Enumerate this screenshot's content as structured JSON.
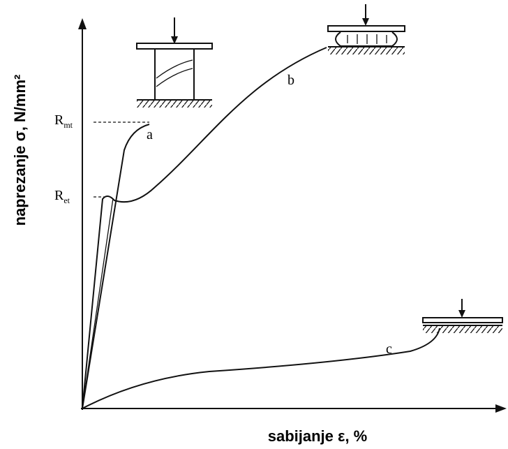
{
  "y_axis_label": "naprezanje σ, N/mm²",
  "x_axis_label": "sabijanje ε, %",
  "levels": [
    {
      "main": "R",
      "sub": "mt"
    },
    {
      "main": "R",
      "sub": "et"
    }
  ],
  "curves": [
    {
      "label": "a"
    },
    {
      "label": "b"
    },
    {
      "label": "c"
    }
  ]
}
